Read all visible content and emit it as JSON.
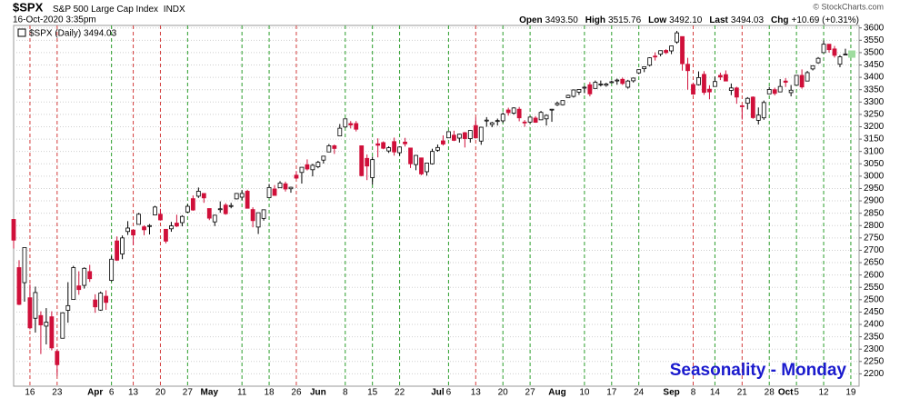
{
  "chart_data": {
    "type": "candlestick",
    "symbol": "$SPX",
    "name": "S&P 500 Large Cap Index",
    "exchange": "INDX",
    "timestamp": "16-Oct-2020 3:35pm",
    "quote": [
      {
        "label": "Open",
        "value": "3493.50"
      },
      {
        "label": "High",
        "value": "3515.76"
      },
      {
        "label": "Low",
        "value": "3492.10"
      },
      {
        "label": "Last",
        "value": "3494.03"
      },
      {
        "label": "Chg",
        "value": "+10.69 (+0.31%)"
      }
    ],
    "copyright": "© StockCharts.com",
    "legend": "$SPX (Daily) 3494.03",
    "annotation": "Seasonality - Monday",
    "up_color": "#ffffff",
    "down_color": "#d0103a",
    "monday_up_color": "#2a9d2a",
    "monday_down_color": "#d33c3c",
    "grid": true,
    "ylim": [
      2150,
      3610
    ],
    "yticks": [
      2200,
      2250,
      2300,
      2350,
      2400,
      2450,
      2500,
      2550,
      2600,
      2650,
      2700,
      2750,
      2800,
      2850,
      2900,
      2950,
      3000,
      3050,
      3100,
      3150,
      3200,
      3250,
      3300,
      3350,
      3400,
      3450,
      3500,
      3550,
      3600
    ],
    "categories": [
      null,
      null,
      null,
      "16",
      null,
      null,
      null,
      null,
      "23",
      null,
      null,
      null,
      null,
      null,
      null,
      "Apr",
      null,
      null,
      "6",
      null,
      null,
      null,
      "13",
      null,
      null,
      null,
      null,
      "20",
      null,
      null,
      null,
      null,
      "27",
      null,
      null,
      null,
      "May",
      null,
      null,
      null,
      null,
      null,
      "11",
      null,
      null,
      null,
      null,
      "18",
      null,
      null,
      null,
      null,
      "26",
      null,
      null,
      null,
      "Jun",
      null,
      null,
      null,
      null,
      "8",
      null,
      null,
      null,
      null,
      "15",
      null,
      null,
      null,
      null,
      "22",
      null,
      null,
      null,
      null,
      null,
      null,
      "Jul",
      null,
      "6",
      null,
      null,
      null,
      null,
      "13",
      null,
      null,
      null,
      null,
      "20",
      null,
      null,
      null,
      null,
      "27",
      null,
      null,
      null,
      null,
      "Aug",
      null,
      null,
      null,
      null,
      "10",
      null,
      null,
      null,
      null,
      "17",
      null,
      null,
      null,
      null,
      "24",
      null,
      null,
      null,
      null,
      null,
      "Sep",
      null,
      null,
      null,
      "8",
      null,
      null,
      null,
      "14",
      null,
      null,
      null,
      null,
      "21",
      null,
      null,
      null,
      null,
      "28",
      null,
      null,
      "Oct",
      null,
      "5",
      null,
      null,
      null,
      null,
      "12",
      null,
      null,
      null,
      null,
      "19"
    ],
    "open": [
      2825,
      2630,
      2569,
      2508,
      2425,
      2436,
      2393,
      2431,
      2291,
      2344,
      2457,
      2501,
      2556,
      2558,
      2614,
      2499,
      2458,
      2514,
      2578,
      2738,
      2685,
      2776,
      2782,
      2805,
      2795,
      2800,
      2843,
      2846,
      2785,
      2787,
      2810,
      2812,
      2855,
      2909,
      2919,
      2930,
      2869,
      2815,
      2868,
      2883,
      2879,
      2908,
      2915,
      2939,
      2865,
      2794,
      2829,
      2913,
      2948,
      2953,
      2969,
      2949,
      3004,
      3015,
      3046,
      3026,
      3038,
      3065,
      3098,
      3123,
      3163,
      3199,
      3213,
      3213,
      3123,
      3072,
      2994,
      3131,
      3136,
      3102,
      3140,
      3095,
      3138,
      3114,
      3047,
      3074,
      3018,
      3050,
      3105,
      3143,
      3155,
      3166,
      3154,
      3176,
      3152,
      3205,
      3142,
      3226,
      3209,
      3224,
      3224,
      3268,
      3255,
      3271,
      3219,
      3219,
      3235,
      3228,
      3232,
      3270,
      3289,
      3289,
      3318,
      3323,
      3340,
      3357,
      3370,
      3355,
      3373,
      3368,
      3380,
      3387,
      3392,
      3360,
      3386,
      3418,
      3435,
      3449,
      3486,
      3494,
      3509,
      3507,
      3543,
      3565,
      3453,
      3371,
      3370,
      3412,
      3352,
      3363,
      3408,
      3411,
      3347,
      3357,
      3285,
      3295,
      3320,
      3226,
      3236,
      3333,
      3350,
      3341,
      3385,
      3338,
      3368,
      3408,
      3385,
      3434,
      3459,
      3500,
      3534,
      3515,
      3453,
      3493.5,
      null
    ],
    "high": [
      2825,
      2660,
      2711,
      2562,
      2553,
      2453,
      2466,
      2453,
      2300,
      2449,
      2571,
      2637,
      2615,
      2631,
      2641,
      2522,
      2533,
      2538,
      2677,
      2756,
      2760,
      2818,
      2782,
      2851,
      2801,
      2806,
      2880,
      2868,
      2786,
      2815,
      2844,
      2842,
      2887,
      2922,
      2954,
      2930,
      2869,
      2844,
      2898,
      2891,
      2892,
      2932,
      2944,
      2945,
      2874,
      2852,
      2865,
      2968,
      2964,
      2980,
      2978,
      2957,
      3021,
      3036,
      3068,
      3050,
      3062,
      3081,
      3130,
      3128,
      3211,
      3233,
      3223,
      3223,
      3123,
      3088,
      3079,
      3153,
      3141,
      3121,
      3156,
      3120,
      3155,
      3115,
      3086,
      3074,
      3054,
      3111,
      3128,
      3165,
      3182,
      3184,
      3172,
      3179,
      3186,
      3236,
      3200,
      3239,
      3220,
      3233,
      3258,
      3277,
      3279,
      3280,
      3227,
      3241,
      3243,
      3264,
      3250,
      3272,
      3302,
      3306,
      3330,
      3351,
      3352,
      3364,
      3381,
      3387,
      3387,
      3378,
      3387,
      3395,
      3399,
      3390,
      3399,
      3432,
      3444,
      3481,
      3501,
      3509,
      3514,
      3528,
      3588,
      3565,
      3479,
      3379,
      3424,
      3425,
      3368,
      3403,
      3419,
      3428,
      3375,
      3362,
      3285,
      3320,
      3323,
      3278,
      3306,
      3361,
      3358,
      3393,
      3397,
      3369,
      3409,
      3432,
      3426,
      3447,
      3482,
      3549,
      3534,
      3527,
      3490,
      3515.76,
      null
    ],
    "low": [
      2707,
      2478,
      2492,
      2380,
      2367,
      2280,
      2319,
      2295,
      2192,
      2344,
      2407,
      2501,
      2520,
      2545,
      2572,
      2447,
      2455,
      2459,
      2574,
      2657,
      2664,
      2762,
      2721,
      2805,
      2761,
      2764,
      2843,
      2820,
      2728,
      2775,
      2794,
      2797,
      2852,
      2860,
      2912,
      2892,
      2822,
      2798,
      2852,
      2844,
      2870,
      2906,
      2903,
      2869,
      2793,
      2766,
      2820,
      2913,
      2922,
      2953,
      2938,
      2933,
      2988,
      2970,
      3023,
      2999,
      3032,
      3051,
      3098,
      3090,
      3163,
      3196,
      3193,
      3181,
      2999,
      2984,
      2966,
      3076,
      3109,
      3094,
      3083,
      3083,
      3120,
      3033,
      3024,
      3004,
      3002,
      3047,
      3099,
      3124,
      3155,
      3142,
      3136,
      3116,
      3136,
      3152,
      3127,
      3200,
      3198,
      3205,
      3216,
      3245,
      3249,
      3222,
      3200,
      3214,
      3216,
      3228,
      3205,
      3220,
      3284,
      3286,
      3317,
      3318,
      3329,
      3336,
      3323,
      3355,
      3363,
      3362,
      3379,
      3370,
      3369,
      3354,
      3379,
      3413,
      3421,
      3444,
      3468,
      3485,
      3494,
      3494,
      3536,
      3427,
      3350,
      3329,
      3367,
      3329,
      3311,
      3363,
      3389,
      3384,
      3328,
      3293,
      3229,
      3270,
      3232,
      3209,
      3228,
      3333,
      3327,
      3340,
      3361,
      3323,
      3367,
      3354,
      3384,
      3428,
      3455,
      3500,
      3500,
      3480,
      3441,
      3492.1,
      null
    ],
    "close": [
      2741,
      2481,
      2711,
      2386,
      2529,
      2398,
      2409,
      2305,
      2237,
      2447,
      2476,
      2630,
      2541,
      2627,
      2585,
      2471,
      2527,
      2489,
      2664,
      2660,
      2750,
      2790,
      2762,
      2846,
      2783,
      2800,
      2875,
      2823,
      2737,
      2799,
      2798,
      2837,
      2878,
      2863,
      2939,
      2912,
      2830,
      2842,
      2868,
      2848,
      2881,
      2930,
      2930,
      2870,
      2820,
      2852,
      2864,
      2954,
      2922,
      2972,
      2948,
      2955,
      2992,
      3036,
      3029,
      3044,
      3056,
      3081,
      3123,
      3112,
      3194,
      3232,
      3207,
      3190,
      3002,
      3041,
      3067,
      3125,
      3113,
      3115,
      3098,
      3118,
      3131,
      3050,
      3084,
      3009,
      3053,
      3100,
      3116,
      3130,
      3180,
      3145,
      3170,
      3152,
      3185,
      3155,
      3198,
      3227,
      3216,
      3225,
      3251,
      3257,
      3276,
      3236,
      3216,
      3239,
      3218,
      3258,
      3246,
      3271,
      3295,
      3306,
      3327,
      3349,
      3351,
      3360,
      3333,
      3380,
      3373,
      3373,
      3382,
      3389,
      3375,
      3385,
      3397,
      3431,
      3443,
      3479,
      3485,
      3508,
      3500,
      3527,
      3580,
      3455,
      3427,
      3332,
      3399,
      3339,
      3341,
      3383,
      3401,
      3385,
      3357,
      3320,
      3281,
      3315,
      3237,
      3247,
      3298,
      3351,
      3335,
      3363,
      3380,
      3348,
      3408,
      3361,
      3419,
      3447,
      3477,
      3534,
      3512,
      3489,
      3483,
      3494.03,
      null
    ]
  }
}
